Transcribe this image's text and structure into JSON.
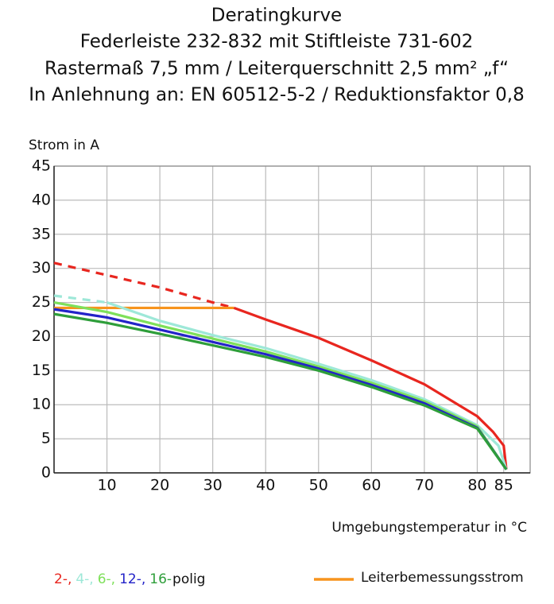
{
  "chart_data": {
    "type": "line",
    "title": [
      "Deratingkurve",
      "Federleiste 232-832 mit Stiftleiste 731-602",
      "Rastermaß 7,5 mm / Leiterquerschnitt 2,5 mm² „f“",
      "In Anlehnung an: EN 60512-5-2 / Reduktionsfaktor 0,8"
    ],
    "y_label": "Strom in A",
    "x_label": "Umgebungstemperatur in °C",
    "xlim": [
      0,
      90
    ],
    "ylim": [
      0,
      45
    ],
    "xticks": [
      10,
      20,
      30,
      40,
      50,
      60,
      70,
      80,
      85
    ],
    "yticks": [
      0,
      5,
      10,
      15,
      20,
      25,
      30,
      35,
      40,
      45
    ],
    "grid": true,
    "legend_suffix": "polig",
    "series": [
      {
        "color": "#e8261f",
        "style": "dashed",
        "x": [
          0,
          10,
          20,
          30,
          34
        ],
        "values": [
          30.8,
          29,
          27.2,
          25,
          24.2
        ]
      },
      {
        "color": "#9ee8d8",
        "style": "dashed",
        "x": [
          0,
          10
        ],
        "values": [
          26,
          25
        ]
      },
      {
        "name": "Leiterbemessungsstrom",
        "color": "#f7941d",
        "style": "solid",
        "x": [
          0,
          34
        ],
        "values": [
          24.2,
          24.2
        ]
      },
      {
        "name": "2-,",
        "color": "#e8261f",
        "style": "solid",
        "x": [
          34,
          40,
          50,
          60,
          70,
          80,
          83,
          85,
          85.5
        ],
        "values": [
          24.2,
          22.5,
          19.8,
          16.5,
          13,
          8.3,
          6,
          4,
          0.5
        ]
      },
      {
        "name": "4-,",
        "color": "#9ee8d8",
        "style": "solid",
        "x": [
          10,
          20,
          30,
          40,
          50,
          60,
          70,
          80,
          84,
          85.5
        ],
        "values": [
          25,
          22.3,
          20.2,
          18.3,
          16,
          13.6,
          10.8,
          7,
          4,
          0.5
        ]
      },
      {
        "name": "6-,",
        "color": "#7ee05a",
        "style": "solid",
        "x": [
          0,
          10,
          20,
          30,
          40,
          50,
          60,
          70,
          80,
          85.5
        ],
        "values": [
          25,
          23.6,
          21.6,
          19.7,
          17.8,
          15.6,
          13.2,
          10.5,
          6.8,
          0.5
        ]
      },
      {
        "name": "12-,",
        "color": "#2323c8",
        "style": "solid",
        "x": [
          0,
          10,
          20,
          30,
          40,
          50,
          60,
          70,
          80,
          85.5
        ],
        "values": [
          24,
          22.8,
          21,
          19.2,
          17.4,
          15.3,
          12.9,
          10.2,
          6.6,
          0.5
        ]
      },
      {
        "name": "16-",
        "color": "#2e9e3a",
        "style": "solid",
        "x": [
          0,
          10,
          20,
          30,
          40,
          50,
          60,
          70,
          80,
          85.5
        ],
        "values": [
          23.3,
          22,
          20.4,
          18.7,
          17,
          15,
          12.6,
          9.9,
          6.5,
          0.5
        ]
      }
    ]
  }
}
